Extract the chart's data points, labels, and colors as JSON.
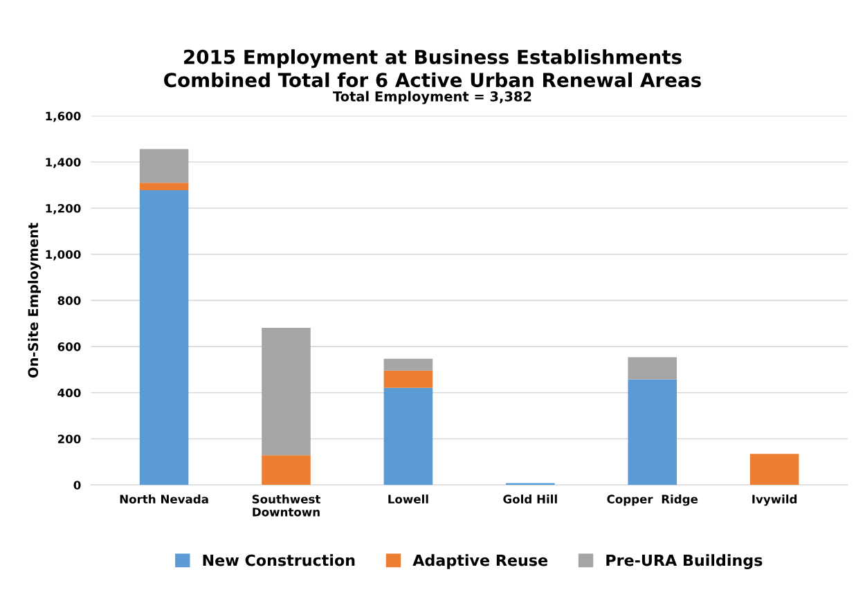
{
  "chart_data": {
    "type": "bar",
    "title": "2015 Employment at Business Establishments\nCombined Total for 6 Active Urban Renewal Areas",
    "subtitle": "Total Employment = 3,382",
    "ylabel": "On-Site Employment",
    "categories": [
      "North Nevada",
      "Southwest\nDowntown",
      "Lowell",
      "Gold Hill",
      "Copper  Ridge",
      "Ivywild"
    ],
    "stacked": true,
    "series": [
      {
        "name": "New Construction",
        "color": "#5b9bd5",
        "values": [
          1278,
          0,
          421,
          8,
          458,
          0
        ]
      },
      {
        "name": "Adaptive Reuse",
        "color": "#ed7d31",
        "values": [
          32,
          129,
          75,
          0,
          0,
          135
        ]
      },
      {
        "name": "Pre-URA Buildings",
        "color": "#a5a5a5",
        "values": [
          146,
          552,
          51,
          0,
          96,
          0
        ]
      }
    ],
    "ylim": [
      0,
      1600
    ],
    "yticks": [
      {
        "value": 0,
        "label": "0"
      },
      {
        "value": 200,
        "label": "200"
      },
      {
        "value": 400,
        "label": "400"
      },
      {
        "value": 600,
        "label": "600"
      },
      {
        "value": 800,
        "label": "800"
      },
      {
        "value": 1000,
        "label": "1,000"
      },
      {
        "value": 1200,
        "label": "1,200"
      },
      {
        "value": 1400,
        "label": "1,400"
      },
      {
        "value": 1600,
        "label": "1,600"
      }
    ],
    "grid": "y",
    "legend": "bottom"
  }
}
